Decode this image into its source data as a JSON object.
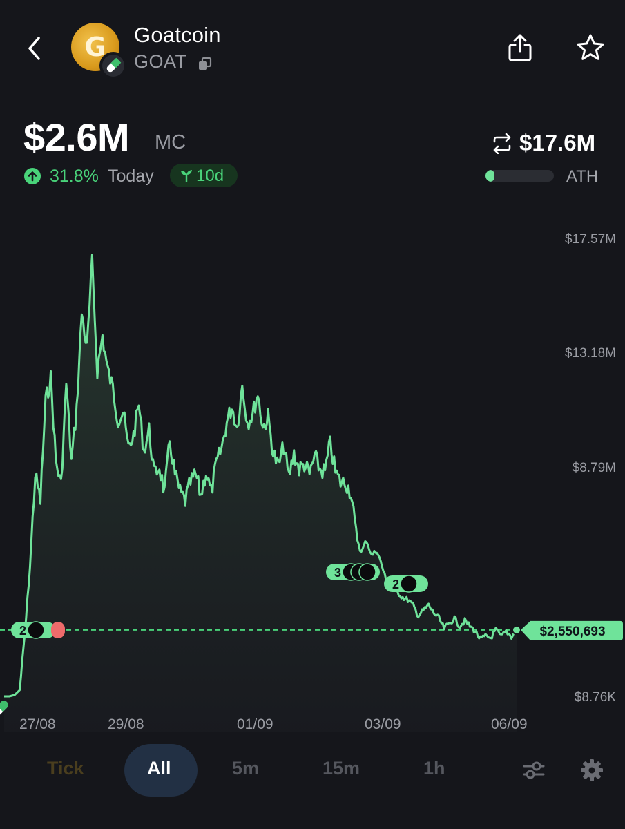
{
  "header": {
    "coin_name": "Goatcoin",
    "ticker": "GOAT",
    "logo_letter": "G"
  },
  "stats": {
    "market_cap": "$2.6M",
    "market_cap_label": "MC",
    "change_pct": "31.8%",
    "change_period": "Today",
    "age": "10d",
    "ath_value": "$17.6M",
    "ath_label": "ATH",
    "ath_progress": 0.13
  },
  "chart_data": {
    "type": "line",
    "x_ticks": [
      "27/08",
      "29/08",
      "01/09",
      "03/09",
      "06/09"
    ],
    "y_ticks": [
      "$17.57M",
      "$13.18M",
      "$8.79M",
      "$8.76K"
    ],
    "current_price_label": "$2,550,693",
    "current_price": 2550693,
    "markers": [
      {
        "count": "2",
        "near": "27/08"
      },
      {
        "count": "3",
        "near": "02/09"
      },
      {
        "count": "2",
        "near": "03/09"
      }
    ],
    "line_color": "#6fe39a",
    "series": [
      {
        "values": [
          8760,
          8760,
          60000,
          250000,
          2400000,
          5000000,
          8500000,
          7500000,
          11300000,
          12200000,
          9000000,
          8100000,
          12000000,
          9000000,
          11000000,
          14700000,
          13300000,
          16600000,
          12500000,
          13800000,
          12500000,
          11800000,
          10600000,
          10900000,
          9500000,
          10000000,
          11200000,
          9400000,
          10200000,
          8500000,
          8800000,
          7800000,
          9800000,
          8500000,
          7800000,
          7500000,
          8200000,
          8500000,
          7700000,
          8600000,
          7800000,
          8900000,
          9500000,
          10500000,
          11100000,
          10300000,
          11900000,
          10500000,
          10800000,
          11600000,
          10300000,
          10700000,
          9300000,
          8800000,
          9600000,
          8400000,
          9300000,
          8700000,
          8900000,
          8500000,
          9200000,
          8700000,
          8600000,
          9700000,
          8600000,
          8200000,
          8200000,
          7800000,
          6200000,
          5500000,
          6000000,
          5400000,
          5600000,
          5000000,
          4300000,
          4100000,
          4000000,
          3800000,
          3700000,
          3500000,
          3100000,
          3300000,
          3500000,
          3200000,
          3000000,
          2600000,
          2800000,
          3000000,
          2700000,
          2900000,
          2700000,
          2500000,
          2200000,
          2300000,
          2250000,
          2550000,
          2300000,
          2500000,
          2300000,
          2550693
        ]
      }
    ],
    "ylim": [
      8760,
      17570000
    ]
  },
  "timeframes": [
    "Tick",
    "All",
    "5m",
    "15m",
    "1h"
  ],
  "selected_timeframe": "All",
  "colors": {
    "background": "#15161b",
    "accent_green": "#49d37a",
    "line_green": "#6fe39a",
    "marker_red": "#ee6b6b",
    "selected_tab": "#223044"
  },
  "icons": [
    "back-chevron-icon",
    "pill-icon",
    "copy-icon",
    "share-icon",
    "star-icon",
    "arrow-up-icon",
    "sprout-icon",
    "swap-icon",
    "filter-sliders-icon",
    "gear-icon"
  ]
}
